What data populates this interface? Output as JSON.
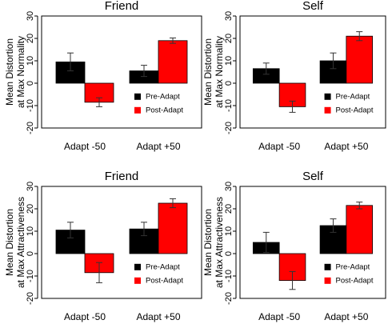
{
  "chart_data": [
    {
      "type": "bar",
      "title": "Friend",
      "ylabel": [
        "Mean Distortion",
        "at Max Normality"
      ],
      "categories": [
        "Adapt -50",
        "Adapt +50"
      ],
      "ylim": [
        -20,
        30
      ],
      "yticks": [
        -20,
        -10,
        0,
        10,
        20,
        30
      ],
      "legend_position": "bottom-right",
      "series": [
        {
          "name": "Pre-Adapt",
          "color": "#000000",
          "values": [
            9.5,
            5.5
          ],
          "errors": [
            4.0,
            2.5
          ]
        },
        {
          "name": "Post-Adapt",
          "color": "#ff0000",
          "values": [
            -8.5,
            19.0
          ],
          "errors": [
            2.0,
            1.2
          ]
        }
      ]
    },
    {
      "type": "bar",
      "title": "Self",
      "ylabel": [
        "Mean Distortion",
        "at Max Normality"
      ],
      "categories": [
        "Adapt -50",
        "Adapt +50"
      ],
      "ylim": [
        -20,
        30
      ],
      "yticks": [
        -20,
        -10,
        0,
        10,
        20,
        30
      ],
      "legend_position": "bottom-right",
      "series": [
        {
          "name": "Pre-Adapt",
          "color": "#000000",
          "values": [
            6.5,
            10.0
          ],
          "errors": [
            2.5,
            3.5
          ]
        },
        {
          "name": "Post-Adapt",
          "color": "#ff0000",
          "values": [
            -10.5,
            21.0
          ],
          "errors": [
            2.5,
            2.0
          ]
        }
      ]
    },
    {
      "type": "bar",
      "title": "Friend",
      "ylabel": [
        "Mean Distortion",
        "at Max Attractiveness"
      ],
      "categories": [
        "Adapt -50",
        "Adapt +50"
      ],
      "ylim": [
        -20,
        30
      ],
      "yticks": [
        -20,
        -10,
        0,
        10,
        20,
        30
      ],
      "legend_position": "bottom-right",
      "series": [
        {
          "name": "Pre-Adapt",
          "color": "#000000",
          "values": [
            10.5,
            11.0
          ],
          "errors": [
            3.5,
            3.0
          ]
        },
        {
          "name": "Post-Adapt",
          "color": "#ff0000",
          "values": [
            -8.5,
            22.5
          ],
          "errors": [
            4.5,
            2.0
          ]
        }
      ]
    },
    {
      "type": "bar",
      "title": "Self",
      "ylabel": [
        "Mean Distortion",
        "at Max Attractiveness"
      ],
      "categories": [
        "Adapt -50",
        "Adapt +50"
      ],
      "ylim": [
        -20,
        30
      ],
      "yticks": [
        -20,
        -10,
        0,
        10,
        20,
        30
      ],
      "legend_position": "bottom-right",
      "series": [
        {
          "name": "Pre-Adapt",
          "color": "#000000",
          "values": [
            5.0,
            12.5
          ],
          "errors": [
            4.5,
            3.0
          ]
        },
        {
          "name": "Post-Adapt",
          "color": "#ff0000",
          "values": [
            -12.0,
            21.5
          ],
          "errors": [
            4.0,
            1.5
          ]
        }
      ]
    }
  ]
}
